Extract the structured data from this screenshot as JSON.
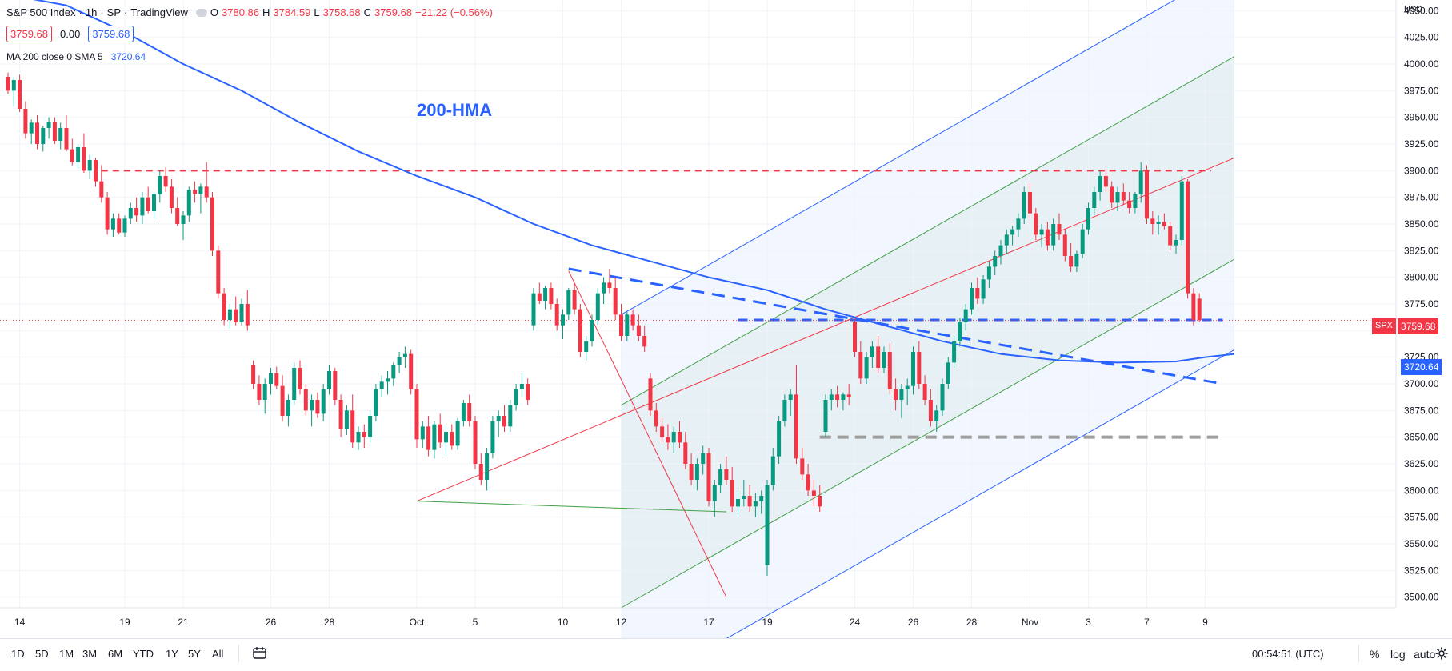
{
  "header": {
    "symbol": "S&P 500 Index",
    "interval": "1h",
    "exchange": "SP",
    "platform": "TradingView",
    "open_label": "O",
    "open_value": "3780.86",
    "high_label": "H",
    "high_value": "3784.59",
    "low_label": "L",
    "low_value": "3758.68",
    "close_label": "C",
    "close_value": "3759.68",
    "change": "−21.22 (−0.56%)",
    "sell_price": "3759.68",
    "spread": "0.00",
    "buy_price": "3759.68"
  },
  "indicator": {
    "label": "MA 200 close 0 SMA 5",
    "value": "3720.64"
  },
  "annotation": {
    "text": "200-HMA"
  },
  "axis": {
    "currency": "USD",
    "price_badge": {
      "symbol": "SPX",
      "value": "3759.68"
    },
    "ma_badge": {
      "value": "3720.64"
    }
  },
  "bottom_bar": {
    "timeframes": [
      "1D",
      "5D",
      "1M",
      "3M",
      "6M",
      "YTD",
      "1Y",
      "5Y",
      "All"
    ],
    "clock": "00:54:51 (UTC)",
    "percent": "%",
    "log": "log",
    "auto": "auto"
  },
  "colors": {
    "up": "#089981",
    "down": "#f23645",
    "ma": "#2962ff",
    "channel_outer": "#2962ff",
    "channel_inner": "#43a047",
    "channel_mid": "#f23645",
    "resistance": "#f23645",
    "support": "#9e9e9e"
  },
  "chart_data": {
    "type": "candlestick",
    "title": "S&P 500 Index, 1h",
    "ylabel": "USD",
    "ylim": [
      3490,
      4060
    ],
    "y_ticks": [
      3500,
      3525,
      3550,
      3575,
      3600,
      3625,
      3650,
      3675,
      3700,
      3725,
      3750,
      3775,
      3800,
      3825,
      3850,
      3875,
      3900,
      3925,
      3950,
      3975,
      4000,
      4025,
      4050
    ],
    "x_ticks": [
      "14",
      "19",
      "21",
      "26",
      "28",
      "Oct",
      "5",
      "10",
      "12",
      "17",
      "19",
      "24",
      "26",
      "28",
      "Nov",
      "3",
      "7",
      "9"
    ],
    "x_tick_bar_index": [
      2,
      20,
      30,
      45,
      55,
      70,
      80,
      95,
      105,
      120,
      130,
      145,
      155,
      165,
      175,
      185,
      195,
      205
    ],
    "bar_count": 210,
    "candles": [
      [
        3988,
        3992,
        3972,
        3975
      ],
      [
        3975,
        3988,
        3960,
        3985
      ],
      [
        3985,
        3990,
        3955,
        3958
      ],
      [
        3958,
        3965,
        3930,
        3935
      ],
      [
        3935,
        3948,
        3925,
        3945
      ],
      [
        3945,
        3952,
        3920,
        3925
      ],
      [
        3925,
        3942,
        3918,
        3940
      ],
      [
        3940,
        3950,
        3930,
        3946
      ],
      [
        3946,
        3950,
        3925,
        3928
      ],
      [
        3928,
        3945,
        3920,
        3940
      ],
      [
        3940,
        3952,
        3918,
        3920
      ],
      [
        3920,
        3930,
        3905,
        3908
      ],
      [
        3908,
        3925,
        3902,
        3922
      ],
      [
        3922,
        3935,
        3898,
        3900
      ],
      [
        3900,
        3915,
        3892,
        3910
      ],
      [
        3910,
        3912,
        3885,
        3890
      ],
      [
        3890,
        3905,
        3870,
        3875
      ],
      [
        3875,
        3880,
        3840,
        3845
      ],
      [
        3845,
        3860,
        3838,
        3855
      ],
      [
        3855,
        3860,
        3840,
        3842
      ],
      [
        3842,
        3858,
        3838,
        3855
      ],
      [
        3855,
        3870,
        3850,
        3865
      ],
      [
        3865,
        3875,
        3852,
        3858
      ],
      [
        3858,
        3880,
        3850,
        3875
      ],
      [
        3875,
        3885,
        3860,
        3862
      ],
      [
        3862,
        3880,
        3855,
        3878
      ],
      [
        3878,
        3900,
        3870,
        3895
      ],
      [
        3895,
        3903,
        3880,
        3885
      ],
      [
        3885,
        3892,
        3860,
        3865
      ],
      [
        3865,
        3875,
        3848,
        3850
      ],
      [
        3850,
        3862,
        3835,
        3858
      ],
      [
        3858,
        3885,
        3852,
        3882
      ],
      [
        3882,
        3890,
        3870,
        3878
      ],
      [
        3878,
        3888,
        3860,
        3885
      ],
      [
        3885,
        3908,
        3870,
        3875
      ],
      [
        3875,
        3880,
        3820,
        3825
      ],
      [
        3825,
        3830,
        3780,
        3785
      ],
      [
        3785,
        3790,
        3755,
        3760
      ],
      [
        3760,
        3775,
        3752,
        3770
      ],
      [
        3770,
        3782,
        3755,
        3758
      ],
      [
        3758,
        3780,
        3755,
        3775
      ],
      [
        3775,
        3788,
        3750,
        3755
      ],
      [
        3718,
        3722,
        3695,
        3700
      ],
      [
        3700,
        3708,
        3680,
        3685
      ],
      [
        3685,
        3705,
        3672,
        3700
      ],
      [
        3700,
        3715,
        3690,
        3710
      ],
      [
        3710,
        3716,
        3695,
        3698
      ],
      [
        3698,
        3708,
        3665,
        3670
      ],
      [
        3670,
        3690,
        3660,
        3685
      ],
      [
        3685,
        3720,
        3680,
        3715
      ],
      [
        3715,
        3722,
        3690,
        3695
      ],
      [
        3695,
        3700,
        3670,
        3675
      ],
      [
        3675,
        3690,
        3660,
        3685
      ],
      [
        3685,
        3692,
        3668,
        3672
      ],
      [
        3672,
        3700,
        3665,
        3695
      ],
      [
        3695,
        3718,
        3690,
        3712
      ],
      [
        3712,
        3715,
        3680,
        3685
      ],
      [
        3685,
        3690,
        3650,
        3658
      ],
      [
        3658,
        3680,
        3652,
        3675
      ],
      [
        3675,
        3690,
        3640,
        3645
      ],
      [
        3645,
        3660,
        3638,
        3655
      ],
      [
        3655,
        3662,
        3640,
        3650
      ],
      [
        3650,
        3675,
        3645,
        3670
      ],
      [
        3670,
        3700,
        3665,
        3695
      ],
      [
        3695,
        3708,
        3688,
        3702
      ],
      [
        3702,
        3712,
        3690,
        3705
      ],
      [
        3705,
        3720,
        3698,
        3718
      ],
      [
        3718,
        3730,
        3710,
        3725
      ],
      [
        3725,
        3735,
        3715,
        3728
      ],
      [
        3728,
        3732,
        3690,
        3695
      ],
      [
        3695,
        3700,
        3640,
        3648
      ],
      [
        3648,
        3665,
        3640,
        3660
      ],
      [
        3660,
        3670,
        3632,
        3638
      ],
      [
        3638,
        3665,
        3630,
        3662
      ],
      [
        3662,
        3672,
        3640,
        3645
      ],
      [
        3645,
        3660,
        3632,
        3655
      ],
      [
        3655,
        3662,
        3638,
        3642
      ],
      [
        3642,
        3668,
        3638,
        3665
      ],
      [
        3665,
        3685,
        3660,
        3682
      ],
      [
        3682,
        3690,
        3660,
        3665
      ],
      [
        3665,
        3670,
        3620,
        3625
      ],
      [
        3625,
        3635,
        3605,
        3610
      ],
      [
        3610,
        3640,
        3600,
        3635
      ],
      [
        3635,
        3670,
        3630,
        3665
      ],
      [
        3665,
        3675,
        3650,
        3670
      ],
      [
        3670,
        3680,
        3655,
        3660
      ],
      [
        3660,
        3685,
        3655,
        3680
      ],
      [
        3680,
        3700,
        3675,
        3695
      ],
      [
        3695,
        3710,
        3688,
        3700
      ],
      [
        3700,
        3705,
        3680,
        3685
      ],
      [
        3755,
        3790,
        3750,
        3785
      ],
      [
        3785,
        3795,
        3775,
        3778
      ],
      [
        3778,
        3792,
        3770,
        3790
      ],
      [
        3790,
        3795,
        3770,
        3775
      ],
      [
        3775,
        3780,
        3750,
        3755
      ],
      [
        3755,
        3770,
        3742,
        3765
      ],
      [
        3765,
        3790,
        3760,
        3788
      ],
      [
        3788,
        3795,
        3765,
        3770
      ],
      [
        3770,
        3775,
        3725,
        3730
      ],
      [
        3730,
        3745,
        3722,
        3740
      ],
      [
        3740,
        3765,
        3735,
        3760
      ],
      [
        3760,
        3790,
        3755,
        3785
      ],
      [
        3785,
        3800,
        3775,
        3795
      ],
      [
        3795,
        3808,
        3785,
        3790
      ],
      [
        3790,
        3800,
        3760,
        3765
      ],
      [
        3765,
        3775,
        3740,
        3745
      ],
      [
        3745,
        3768,
        3740,
        3765
      ],
      [
        3765,
        3770,
        3750,
        3755
      ],
      [
        3755,
        3765,
        3740,
        3745
      ],
      [
        3745,
        3755,
        3730,
        3735
      ],
      [
        3705,
        3710,
        3670,
        3675
      ],
      [
        3675,
        3682,
        3655,
        3660
      ],
      [
        3660,
        3668,
        3645,
        3650
      ],
      [
        3650,
        3662,
        3638,
        3645
      ],
      [
        3645,
        3660,
        3635,
        3655
      ],
      [
        3655,
        3665,
        3640,
        3645
      ],
      [
        3645,
        3655,
        3620,
        3625
      ],
      [
        3625,
        3635,
        3605,
        3610
      ],
      [
        3610,
        3630,
        3600,
        3625
      ],
      [
        3625,
        3642,
        3615,
        3635
      ],
      [
        3635,
        3640,
        3585,
        3590
      ],
      [
        3590,
        3610,
        3575,
        3605
      ],
      [
        3605,
        3625,
        3598,
        3620
      ],
      [
        3620,
        3632,
        3605,
        3610
      ],
      [
        3610,
        3622,
        3580,
        3585
      ],
      [
        3585,
        3600,
        3575,
        3592
      ],
      [
        3592,
        3610,
        3585,
        3595
      ],
      [
        3595,
        3605,
        3580,
        3585
      ],
      [
        3585,
        3598,
        3575,
        3590
      ],
      [
        3590,
        3600,
        3578,
        3595
      ],
      [
        3530,
        3610,
        3520,
        3605
      ],
      [
        3605,
        3640,
        3600,
        3632
      ],
      [
        3632,
        3670,
        3625,
        3665
      ],
      [
        3665,
        3690,
        3660,
        3685
      ],
      [
        3685,
        3695,
        3670,
        3690
      ],
      [
        3690,
        3718,
        3625,
        3630
      ],
      [
        3630,
        3640,
        3610,
        3615
      ],
      [
        3615,
        3625,
        3595,
        3600
      ],
      [
        3600,
        3610,
        3585,
        3595
      ],
      [
        3595,
        3605,
        3580,
        3585
      ],
      [
        3655,
        3690,
        3650,
        3685
      ],
      [
        3685,
        3695,
        3675,
        3690
      ],
      [
        3690,
        3698,
        3678,
        3685
      ],
      [
        3685,
        3692,
        3675,
        3690
      ],
      [
        3690,
        3700,
        3680,
        3688
      ],
      [
        3758,
        3762,
        3725,
        3730
      ],
      [
        3730,
        3740,
        3700,
        3705
      ],
      [
        3705,
        3730,
        3700,
        3725
      ],
      [
        3725,
        3740,
        3715,
        3735
      ],
      [
        3735,
        3745,
        3710,
        3715
      ],
      [
        3715,
        3735,
        3710,
        3730
      ],
      [
        3730,
        3738,
        3690,
        3695
      ],
      [
        3695,
        3705,
        3675,
        3685
      ],
      [
        3685,
        3700,
        3668,
        3695
      ],
      [
        3695,
        3705,
        3680,
        3698
      ],
      [
        3698,
        3735,
        3690,
        3730
      ],
      [
        3730,
        3740,
        3695,
        3700
      ],
      [
        3700,
        3708,
        3680,
        3685
      ],
      [
        3685,
        3695,
        3660,
        3665
      ],
      [
        3665,
        3680,
        3655,
        3675
      ],
      [
        3675,
        3705,
        3670,
        3700
      ],
      [
        3700,
        3725,
        3695,
        3720
      ],
      [
        3720,
        3745,
        3715,
        3740
      ],
      [
        3740,
        3762,
        3735,
        3758
      ],
      [
        3758,
        3775,
        3750,
        3770
      ],
      [
        3770,
        3795,
        3765,
        3790
      ],
      [
        3790,
        3800,
        3775,
        3780
      ],
      [
        3780,
        3802,
        3775,
        3798
      ],
      [
        3798,
        3815,
        3790,
        3810
      ],
      [
        3810,
        3825,
        3802,
        3820
      ],
      [
        3820,
        3835,
        3812,
        3830
      ],
      [
        3830,
        3845,
        3822,
        3840
      ],
      [
        3840,
        3848,
        3830,
        3845
      ],
      [
        3845,
        3860,
        3838,
        3855
      ],
      [
        3855,
        3885,
        3850,
        3880
      ],
      [
        3880,
        3888,
        3855,
        3860
      ],
      [
        3860,
        3865,
        3835,
        3840
      ],
      [
        3840,
        3850,
        3828,
        3845
      ],
      [
        3845,
        3852,
        3825,
        3830
      ],
      [
        3830,
        3855,
        3825,
        3850
      ],
      [
        3850,
        3860,
        3835,
        3840
      ],
      [
        3840,
        3845,
        3815,
        3820
      ],
      [
        3820,
        3832,
        3805,
        3810
      ],
      [
        3810,
        3825,
        3805,
        3822
      ],
      [
        3822,
        3850,
        3818,
        3845
      ],
      [
        3845,
        3870,
        3840,
        3865
      ],
      [
        3865,
        3885,
        3858,
        3880
      ],
      [
        3880,
        3900,
        3872,
        3895
      ],
      [
        3895,
        3902,
        3880,
        3885
      ],
      [
        3885,
        3890,
        3865,
        3870
      ],
      [
        3870,
        3885,
        3862,
        3880
      ],
      [
        3880,
        3888,
        3868,
        3872
      ],
      [
        3872,
        3880,
        3860,
        3865
      ],
      [
        3865,
        3880,
        3860,
        3878
      ],
      [
        3878,
        3908,
        3870,
        3900
      ],
      [
        3900,
        3905,
        3850,
        3855
      ],
      [
        3855,
        3862,
        3840,
        3850
      ],
      [
        3850,
        3858,
        3840,
        3852
      ],
      [
        3852,
        3860,
        3845,
        3848
      ],
      [
        3848,
        3852,
        3825,
        3830
      ],
      [
        3830,
        3840,
        3822,
        3835
      ],
      [
        3835,
        3895,
        3830,
        3890
      ],
      [
        3890,
        3892,
        3780,
        3785
      ],
      [
        3785,
        3790,
        3755,
        3760
      ],
      [
        3780,
        3785,
        3758,
        3760
      ]
    ],
    "ma_200_line": [
      [
        0,
        4065
      ],
      [
        10,
        4055
      ],
      [
        20,
        4030
      ],
      [
        30,
        4000
      ],
      [
        40,
        3975
      ],
      [
        50,
        3945
      ],
      [
        60,
        3918
      ],
      [
        70,
        3895
      ],
      [
        80,
        3875
      ],
      [
        90,
        3850
      ],
      [
        100,
        3830
      ],
      [
        110,
        3815
      ],
      [
        120,
        3800
      ],
      [
        130,
        3788
      ],
      [
        140,
        3770
      ],
      [
        150,
        3755
      ],
      [
        160,
        3740
      ],
      [
        170,
        3728
      ],
      [
        180,
        3722
      ],
      [
        190,
        3720
      ],
      [
        200,
        3721
      ],
      [
        205,
        3725
      ],
      [
        210,
        3728
      ]
    ],
    "resistance_level": 3900,
    "support_levels": [
      3760,
      3650
    ],
    "trend_line_down": [
      [
        96,
        3808
      ],
      [
        208,
        3700
      ]
    ],
    "regression_channel": {
      "start_index": 105,
      "end_index": 210,
      "mid_start": 3585,
      "mid_end": 3912,
      "inner_offset": 95,
      "outer_offset": 180
    },
    "zigzag_lines": [
      [
        [
          96,
          3806
        ],
        [
          123,
          3500
        ]
      ],
      [
        [
          70,
          3590
        ],
        [
          123,
          3580
        ]
      ]
    ]
  }
}
